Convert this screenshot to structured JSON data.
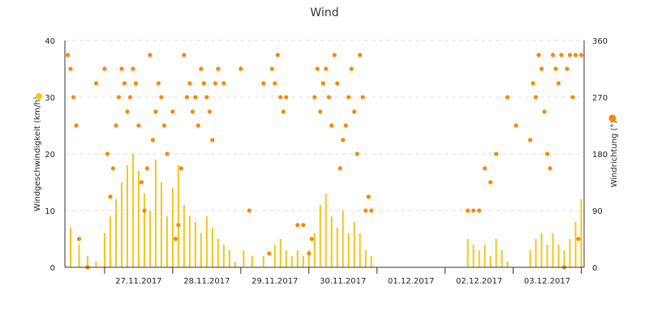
{
  "chart_data": {
    "type": "bar+scatter",
    "title": "Wind",
    "x_axis": {
      "type": "datetime",
      "range": [
        "2017-11-26T10:00",
        "2017-12-04T01:00"
      ],
      "tick_labels": [
        "27.11.2017",
        "28.11.2017",
        "29.11.2017",
        "30.11.2017",
        "01.12.2017",
        "02.12.2017",
        "03.12.2017"
      ]
    },
    "y_left": {
      "label": "Windgeschwindigkeit (km/h)",
      "ylim": [
        0,
        40
      ],
      "ticks": [
        0,
        10,
        20,
        30,
        40
      ]
    },
    "y_right": {
      "label": "Windrichtung (°)",
      "ylim": [
        0,
        360
      ],
      "ticks": [
        0,
        90,
        180,
        270,
        360
      ]
    },
    "grid": true,
    "legend": "axis-title markers",
    "colors": {
      "speed": "#f5c518",
      "direction": "#f58a07",
      "marker_left": "#f5c518",
      "marker_right": "#f58a07"
    },
    "series": [
      {
        "name": "Windgeschwindigkeit",
        "kind": "bar",
        "axis": "left",
        "unit": "km/h",
        "points": [
          [
            "2017-11-26T12:00",
            7
          ],
          [
            "2017-11-26T15:00",
            4
          ],
          [
            "2017-11-26T18:00",
            2
          ],
          [
            "2017-11-26T21:00",
            1
          ],
          [
            "2017-11-27T00:00",
            6
          ],
          [
            "2017-11-27T02:00",
            9
          ],
          [
            "2017-11-27T04:00",
            12
          ],
          [
            "2017-11-27T06:00",
            15
          ],
          [
            "2017-11-27T08:00",
            18
          ],
          [
            "2017-11-27T10:00",
            20
          ],
          [
            "2017-11-27T12:00",
            17
          ],
          [
            "2017-11-27T14:00",
            13
          ],
          [
            "2017-11-27T16:00",
            10
          ],
          [
            "2017-11-27T18:00",
            19
          ],
          [
            "2017-11-27T20:00",
            15
          ],
          [
            "2017-11-27T22:00",
            9
          ],
          [
            "2017-11-28T00:00",
            14
          ],
          [
            "2017-11-28T02:00",
            18
          ],
          [
            "2017-11-28T04:00",
            11
          ],
          [
            "2017-11-28T06:00",
            9
          ],
          [
            "2017-11-28T08:00",
            8
          ],
          [
            "2017-11-28T10:00",
            6
          ],
          [
            "2017-11-28T12:00",
            9
          ],
          [
            "2017-11-28T14:00",
            7
          ],
          [
            "2017-11-28T16:00",
            5
          ],
          [
            "2017-11-28T18:00",
            4
          ],
          [
            "2017-11-28T20:00",
            3
          ],
          [
            "2017-11-28T22:00",
            1
          ],
          [
            "2017-11-29T01:00",
            3
          ],
          [
            "2017-11-29T04:00",
            2
          ],
          [
            "2017-11-29T08:00",
            2
          ],
          [
            "2017-11-29T12:00",
            4
          ],
          [
            "2017-11-29T14:00",
            5
          ],
          [
            "2017-11-29T16:00",
            3
          ],
          [
            "2017-11-29T18:00",
            2
          ],
          [
            "2017-11-29T20:00",
            3
          ],
          [
            "2017-11-29T22:00",
            2
          ],
          [
            "2017-11-30T00:00",
            3
          ],
          [
            "2017-11-30T02:00",
            6
          ],
          [
            "2017-11-30T04:00",
            11
          ],
          [
            "2017-11-30T06:00",
            13
          ],
          [
            "2017-11-30T08:00",
            9
          ],
          [
            "2017-11-30T10:00",
            7
          ],
          [
            "2017-11-30T12:00",
            10
          ],
          [
            "2017-11-30T14:00",
            6
          ],
          [
            "2017-11-30T16:00",
            8
          ],
          [
            "2017-11-30T18:00",
            6
          ],
          [
            "2017-11-30T20:00",
            3
          ],
          [
            "2017-11-30T22:00",
            2
          ],
          [
            "2017-12-02T08:00",
            5
          ],
          [
            "2017-12-02T10:00",
            4
          ],
          [
            "2017-12-02T12:00",
            3
          ],
          [
            "2017-12-02T14:00",
            4
          ],
          [
            "2017-12-02T16:00",
            2
          ],
          [
            "2017-12-02T18:00",
            5
          ],
          [
            "2017-12-02T20:00",
            3
          ],
          [
            "2017-12-02T22:00",
            1
          ],
          [
            "2017-12-03T06:00",
            3
          ],
          [
            "2017-12-03T08:00",
            5
          ],
          [
            "2017-12-03T10:00",
            6
          ],
          [
            "2017-12-03T12:00",
            4
          ],
          [
            "2017-12-03T14:00",
            6
          ],
          [
            "2017-12-03T16:00",
            4
          ],
          [
            "2017-12-03T18:00",
            3
          ],
          [
            "2017-12-03T20:00",
            5
          ],
          [
            "2017-12-03T22:00",
            8
          ],
          [
            "2017-12-04T00:00",
            12
          ]
        ]
      },
      {
        "name": "Windrichtung",
        "kind": "scatter",
        "axis": "right",
        "unit": "°",
        "points": [
          [
            "2017-11-26T11:00",
            337
          ],
          [
            "2017-11-26T12:00",
            315
          ],
          [
            "2017-11-26T13:00",
            270
          ],
          [
            "2017-11-26T14:00",
            225
          ],
          [
            "2017-11-26T15:00",
            45
          ],
          [
            "2017-11-26T18:00",
            0
          ],
          [
            "2017-11-26T21:00",
            292
          ],
          [
            "2017-11-27T00:00",
            315
          ],
          [
            "2017-11-27T01:00",
            180
          ],
          [
            "2017-11-27T02:00",
            112
          ],
          [
            "2017-11-27T03:00",
            157
          ],
          [
            "2017-11-27T04:00",
            225
          ],
          [
            "2017-11-27T05:00",
            270
          ],
          [
            "2017-11-27T06:00",
            315
          ],
          [
            "2017-11-27T07:00",
            292
          ],
          [
            "2017-11-27T08:00",
            247
          ],
          [
            "2017-11-27T09:00",
            270
          ],
          [
            "2017-11-27T10:00",
            315
          ],
          [
            "2017-11-27T11:00",
            292
          ],
          [
            "2017-11-27T12:00",
            225
          ],
          [
            "2017-11-27T13:00",
            135
          ],
          [
            "2017-11-27T14:00",
            90
          ],
          [
            "2017-11-27T15:00",
            157
          ],
          [
            "2017-11-27T16:00",
            337
          ],
          [
            "2017-11-27T17:00",
            202
          ],
          [
            "2017-11-27T18:00",
            247
          ],
          [
            "2017-11-27T19:00",
            292
          ],
          [
            "2017-11-27T20:00",
            270
          ],
          [
            "2017-11-27T21:00",
            225
          ],
          [
            "2017-11-27T22:00",
            180
          ],
          [
            "2017-11-28T00:00",
            247
          ],
          [
            "2017-11-28T01:00",
            45
          ],
          [
            "2017-11-28T02:00",
            67
          ],
          [
            "2017-11-28T03:00",
            157
          ],
          [
            "2017-11-28T04:00",
            337
          ],
          [
            "2017-11-28T05:00",
            270
          ],
          [
            "2017-11-28T06:00",
            292
          ],
          [
            "2017-11-28T07:00",
            247
          ],
          [
            "2017-11-28T08:00",
            270
          ],
          [
            "2017-11-28T09:00",
            225
          ],
          [
            "2017-11-28T10:00",
            315
          ],
          [
            "2017-11-28T11:00",
            292
          ],
          [
            "2017-11-28T12:00",
            270
          ],
          [
            "2017-11-28T13:00",
            247
          ],
          [
            "2017-11-28T14:00",
            202
          ],
          [
            "2017-11-28T15:00",
            292
          ],
          [
            "2017-11-28T16:00",
            315
          ],
          [
            "2017-11-28T18:00",
            292
          ],
          [
            "2017-11-29T00:00",
            315
          ],
          [
            "2017-11-29T03:00",
            90
          ],
          [
            "2017-11-29T08:00",
            292
          ],
          [
            "2017-11-29T10:00",
            22
          ],
          [
            "2017-11-29T11:00",
            315
          ],
          [
            "2017-11-29T12:00",
            292
          ],
          [
            "2017-11-29T13:00",
            337
          ],
          [
            "2017-11-29T14:00",
            270
          ],
          [
            "2017-11-29T15:00",
            247
          ],
          [
            "2017-11-29T16:00",
            270
          ],
          [
            "2017-11-29T20:00",
            67
          ],
          [
            "2017-11-29T22:00",
            67
          ],
          [
            "2017-11-30T00:00",
            22
          ],
          [
            "2017-11-30T01:00",
            45
          ],
          [
            "2017-11-30T02:00",
            270
          ],
          [
            "2017-11-30T03:00",
            315
          ],
          [
            "2017-11-30T04:00",
            247
          ],
          [
            "2017-11-30T05:00",
            292
          ],
          [
            "2017-11-30T06:00",
            315
          ],
          [
            "2017-11-30T07:00",
            270
          ],
          [
            "2017-11-30T08:00",
            225
          ],
          [
            "2017-11-30T09:00",
            337
          ],
          [
            "2017-11-30T10:00",
            292
          ],
          [
            "2017-11-30T11:00",
            157
          ],
          [
            "2017-11-30T12:00",
            202
          ],
          [
            "2017-11-30T13:00",
            225
          ],
          [
            "2017-11-30T14:00",
            270
          ],
          [
            "2017-11-30T15:00",
            315
          ],
          [
            "2017-11-30T16:00",
            247
          ],
          [
            "2017-11-30T17:00",
            180
          ],
          [
            "2017-11-30T18:00",
            337
          ],
          [
            "2017-11-30T19:00",
            270
          ],
          [
            "2017-11-30T20:00",
            90
          ],
          [
            "2017-11-30T21:00",
            112
          ],
          [
            "2017-11-30T22:00",
            90
          ],
          [
            "2017-12-02T08:00",
            90
          ],
          [
            "2017-12-02T10:00",
            90
          ],
          [
            "2017-12-02T12:00",
            90
          ],
          [
            "2017-12-02T14:00",
            157
          ],
          [
            "2017-12-02T16:00",
            135
          ],
          [
            "2017-12-02T18:00",
            180
          ],
          [
            "2017-12-02T22:00",
            270
          ],
          [
            "2017-12-03T01:00",
            225
          ],
          [
            "2017-12-03T06:00",
            202
          ],
          [
            "2017-12-03T07:00",
            292
          ],
          [
            "2017-12-03T08:00",
            270
          ],
          [
            "2017-12-03T09:00",
            337
          ],
          [
            "2017-12-03T10:00",
            315
          ],
          [
            "2017-12-03T11:00",
            247
          ],
          [
            "2017-12-03T12:00",
            180
          ],
          [
            "2017-12-03T13:00",
            157
          ],
          [
            "2017-12-03T14:00",
            337
          ],
          [
            "2017-12-03T15:00",
            315
          ],
          [
            "2017-12-03T16:00",
            292
          ],
          [
            "2017-12-03T17:00",
            337
          ],
          [
            "2017-12-03T18:00",
            0
          ],
          [
            "2017-12-03T19:00",
            315
          ],
          [
            "2017-12-03T20:00",
            337
          ],
          [
            "2017-12-03T21:00",
            270
          ],
          [
            "2017-12-03T22:00",
            337
          ],
          [
            "2017-12-03T23:00",
            45
          ],
          [
            "2017-12-04T00:00",
            337
          ]
        ]
      }
    ]
  }
}
